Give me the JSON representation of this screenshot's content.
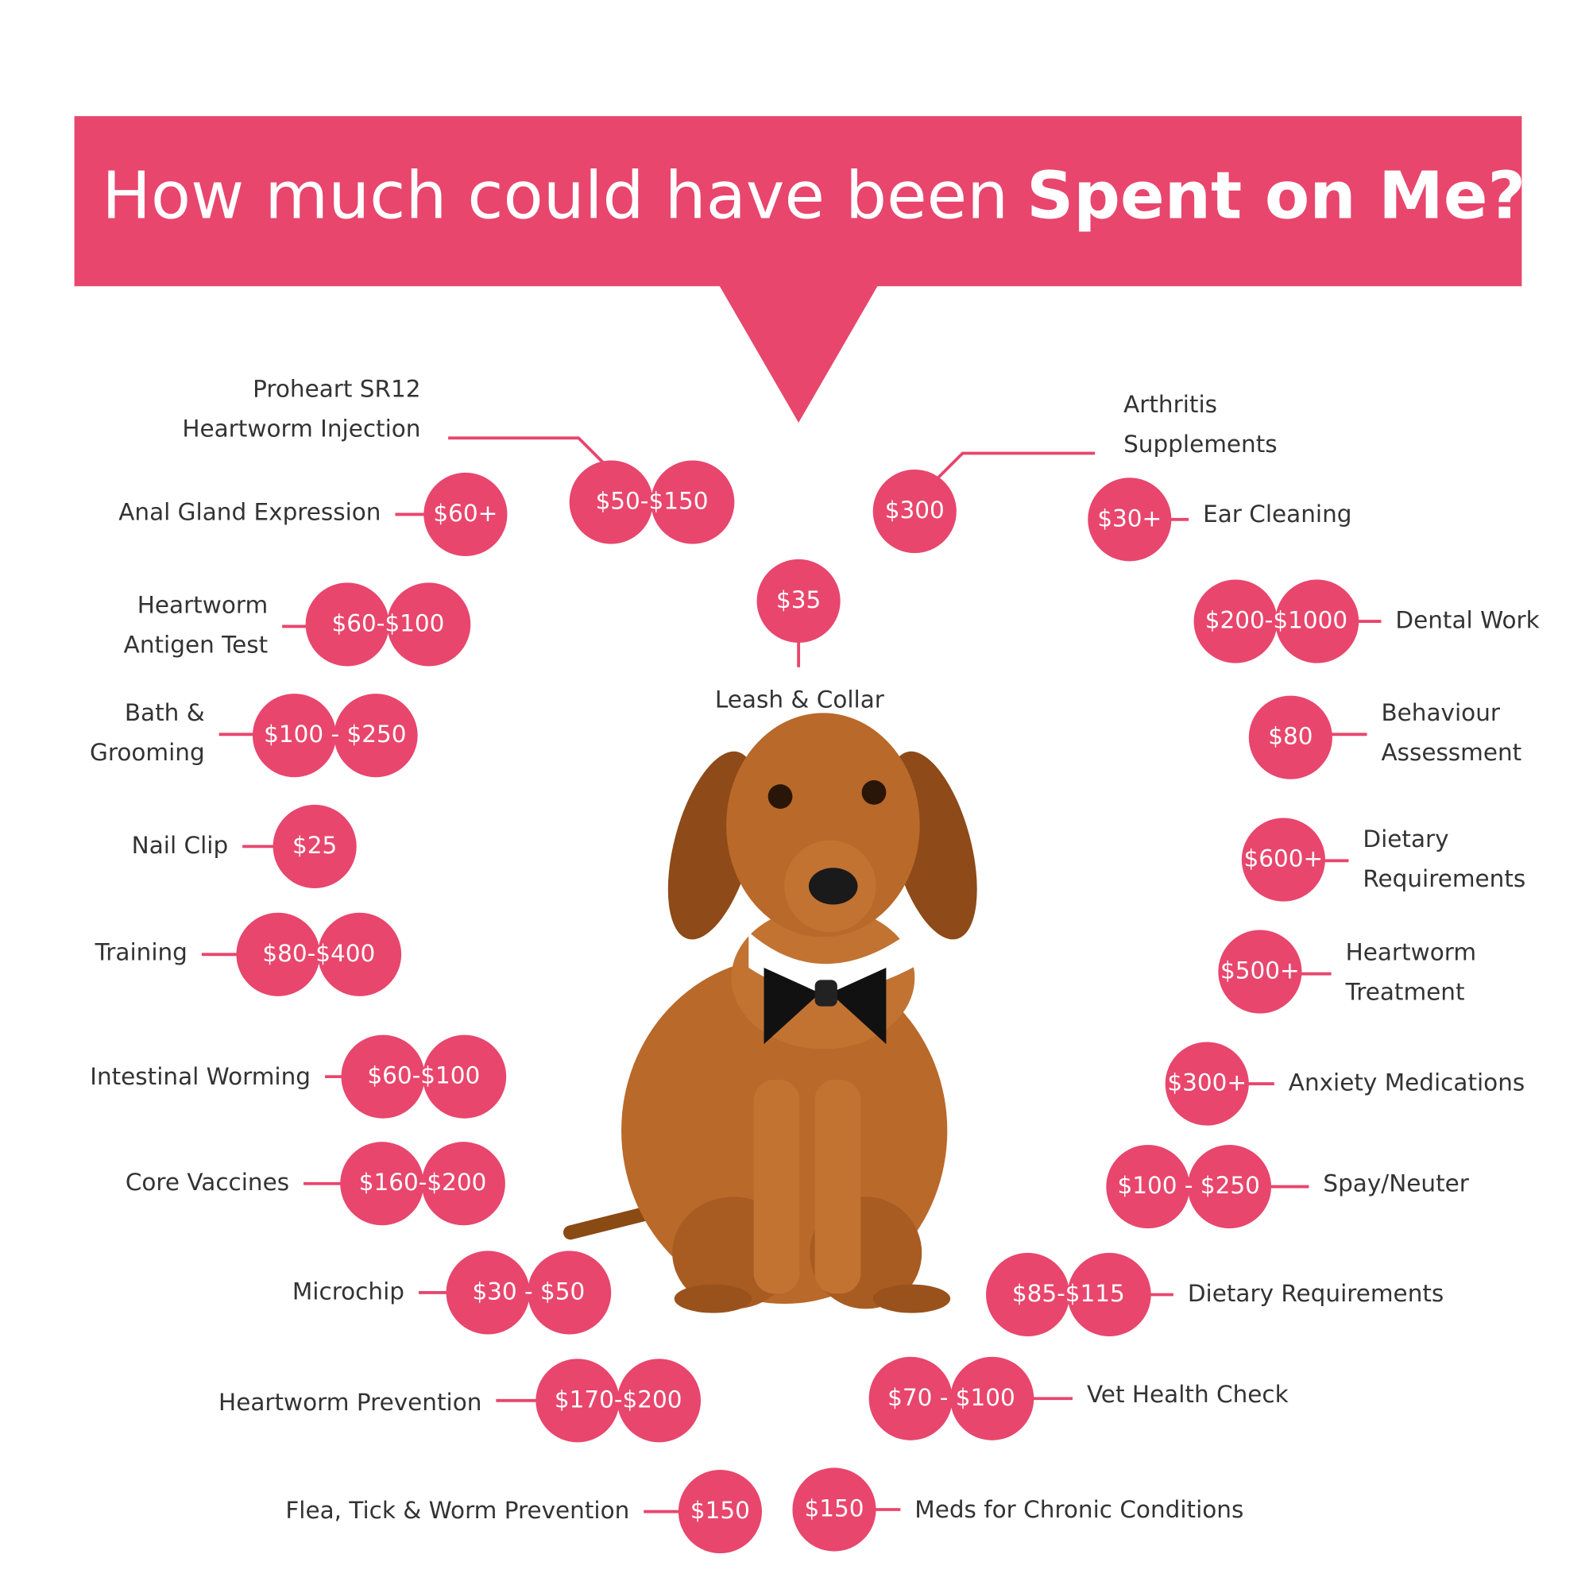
{
  "header": {
    "title_regular": "How much could have been",
    "title_bold": "Spent on Me?"
  },
  "center_item": {
    "label": [
      "Leash & Collar"
    ],
    "price": "$35"
  },
  "items": [
    {
      "label": [
        "Proheart SR12",
        "Heartworm Injection"
      ],
      "price": "$50-$150"
    },
    {
      "label": [
        "Anal Gland Expression"
      ],
      "price": "$60+"
    },
    {
      "label": [
        "Heartworm",
        "Antigen Test"
      ],
      "price": "$60-$100"
    },
    {
      "label": [
        "Bath &",
        "Grooming"
      ],
      "price": "$100 - $250"
    },
    {
      "label": [
        "Nail Clip"
      ],
      "price": "$25"
    },
    {
      "label": [
        "Training"
      ],
      "price": "$80-$400"
    },
    {
      "label": [
        "Intestinal Worming"
      ],
      "price": "$60-$100"
    },
    {
      "label": [
        "Core Vaccines"
      ],
      "price": "$160-$200"
    },
    {
      "label": [
        "Microchip"
      ],
      "price": "$30 - $50"
    },
    {
      "label": [
        "Heartworm Prevention"
      ],
      "price": "$170-$200"
    },
    {
      "label": [
        "Flea, Tick & Worm Prevention"
      ],
      "price": "$150"
    },
    {
      "label": [
        "Arthritis",
        "Supplements"
      ],
      "price": "$300"
    },
    {
      "label": [
        "Ear Cleaning"
      ],
      "price": "$30+"
    },
    {
      "label": [
        "Dental Work"
      ],
      "price": "$200-$1000"
    },
    {
      "label": [
        "Behaviour",
        "Assessment"
      ],
      "price": "$80"
    },
    {
      "label": [
        "Dietary",
        "Requirements"
      ],
      "price": "$600+"
    },
    {
      "label": [
        "Heartworm",
        "Treatment"
      ],
      "price": "$500+"
    },
    {
      "label": [
        "Anxiety Medications"
      ],
      "price": "$300+"
    },
    {
      "label": [
        "Spay/Neuter"
      ],
      "price": "$100 - $250"
    },
    {
      "label": [
        "Dietary Requirements"
      ],
      "price": "$85-$115"
    },
    {
      "label": [
        "Vet Health Check"
      ],
      "price": "$70 - $100"
    },
    {
      "label": [
        "Meds for Chronic Conditions"
      ],
      "price": "$150"
    }
  ]
}
